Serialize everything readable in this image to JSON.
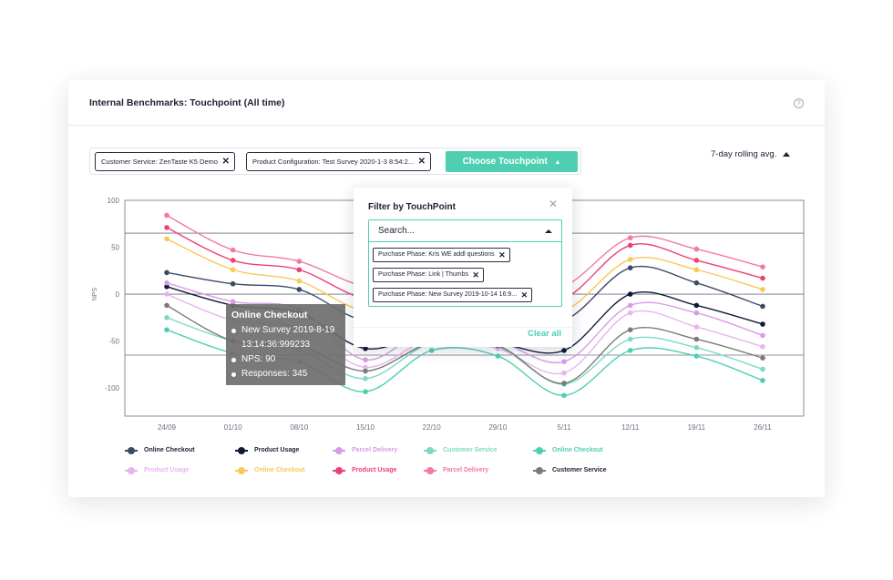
{
  "card": {
    "title": "Internal Benchmarks: Touchpoint (All time)",
    "help_icon": "question-circle-icon"
  },
  "chips": [
    {
      "label": "Customer Service: ZenTaste K5 Demo"
    },
    {
      "label": "Product Configuration: Test Survey 2020-1-3 8:54:2..."
    }
  ],
  "choose_button": {
    "label": "Choose Touchpoint",
    "icon": "caret-up-icon"
  },
  "rolling_select": {
    "label": "7-day rolling avg.",
    "icon": "caret-up-icon"
  },
  "filter_panel": {
    "title": "Filter by TouchPoint",
    "close_icon": "close-icon",
    "search_placeholder": "Search...",
    "selected": [
      {
        "label": "Purchase Phase: Kris WE addl questions"
      },
      {
        "label": "Purchase Phase: Link | Thumbs"
      },
      {
        "label": "Purchase Phase: New Survey 2019-10-14 16:9..."
      }
    ],
    "clear_label": "Clear all"
  },
  "tooltip": {
    "title": "Online Checkout",
    "line1": "New Survey 2019-8-19",
    "line1_cont": "13:14:36:999233",
    "line2": "NPS: 90",
    "line3": "Responses: 345"
  },
  "chart_data": {
    "type": "line",
    "ylabel": "NPS",
    "xlabel": "",
    "ylim": [
      -130,
      100
    ],
    "y_ticks": [
      100,
      50,
      0,
      -50,
      -100
    ],
    "reference_lines": [
      65,
      0,
      -65
    ],
    "categories": [
      "24/09",
      "01/10",
      "08/10",
      "15/10",
      "22/10",
      "29/10",
      "5/11",
      "12/11",
      "19/11",
      "26/11"
    ],
    "series": [
      {
        "name": "Online Checkout",
        "color": "#3d4a66",
        "values": [
          23,
          11,
          5,
          -28,
          -12,
          -22,
          -28,
          28,
          12,
          -13
        ]
      },
      {
        "name": "Product Usage",
        "color": "#111a3a",
        "values": [
          8,
          -12,
          -20,
          -58,
          -42,
          -52,
          -60,
          0,
          -12,
          -32
        ]
      },
      {
        "name": "Parcel Delivery",
        "color": "#d99be6",
        "values": [
          12,
          -8,
          -16,
          -70,
          -35,
          -50,
          -72,
          -12,
          -20,
          -44
        ]
      },
      {
        "name": "Customer Service",
        "color": "#7dd9c6",
        "values": [
          -25,
          -50,
          -60,
          -90,
          -52,
          -56,
          -96,
          -48,
          -57,
          -80
        ]
      },
      {
        "name": "Online Checkout",
        "color": "#4fcfb2",
        "values": [
          -38,
          -63,
          -72,
          -104,
          -60,
          -66,
          -108,
          -60,
          -66,
          -92
        ]
      },
      {
        "name": "Product Usage",
        "color": "#e7b5ee",
        "values": [
          0,
          -28,
          -36,
          -78,
          -48,
          -58,
          -84,
          -20,
          -35,
          -56
        ]
      },
      {
        "name": "Online Checkout",
        "color": "#f8c858",
        "values": [
          59,
          26,
          14,
          -18,
          -8,
          -18,
          -18,
          37,
          26,
          5
        ]
      },
      {
        "name": "Product Usage",
        "color": "#ee3f76",
        "values": [
          71,
          36,
          26,
          -5,
          -2,
          -10,
          -5,
          52,
          36,
          17
        ]
      },
      {
        "name": "Parcel Delivery",
        "color": "#f27aa4",
        "values": [
          84,
          47,
          35,
          8,
          6,
          -3,
          8,
          60,
          48,
          29
        ]
      },
      {
        "name": "Customer Service",
        "color": "#7b7b7b",
        "values": [
          -12,
          -50,
          -55,
          -82,
          -52,
          -55,
          -95,
          -38,
          -48,
          -68
        ]
      }
    ]
  },
  "legend": [
    {
      "label": "Online Checkout",
      "color": "#3d4a66"
    },
    {
      "label": "Product Usage",
      "color": "#111a3a"
    },
    {
      "label": "Parcel Delivery",
      "color": "#d99be6"
    },
    {
      "label": "Customer Service",
      "color": "#7dd9c6"
    },
    {
      "label": "Online Checkout",
      "color": "#4fcfb2"
    },
    {
      "label": "Product Usage",
      "color": "#e7b5ee"
    },
    {
      "label": "Online Checkout",
      "color": "#f8c858"
    },
    {
      "label": "Product Usage",
      "color": "#ee3f76"
    },
    {
      "label": "Parcel Delivery",
      "color": "#f27aa4"
    },
    {
      "label": "Customer Service",
      "color": "#7b7b7b"
    }
  ]
}
